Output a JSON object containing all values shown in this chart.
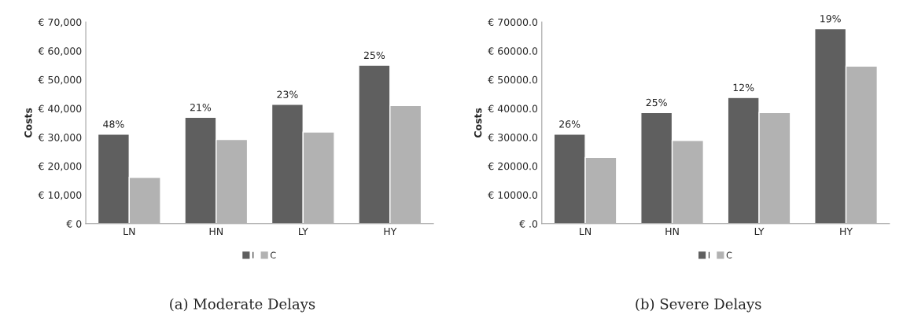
{
  "chart_data": [
    {
      "type": "bar",
      "title": "(a) Moderate Delays",
      "ylabel": "Costs",
      "categories": [
        "LN",
        "HN",
        "LY",
        "HY"
      ],
      "series": [
        {
          "name": "I",
          "color": "#5f5f5f",
          "values": [
            31100,
            36900,
            41400,
            55000
          ]
        },
        {
          "name": "C",
          "color": "#b2b2b2",
          "values": [
            16100,
            29200,
            31800,
            41000
          ]
        }
      ],
      "ylim": [
        0,
        70000
      ],
      "yticks": [
        {
          "value": 0,
          "label": "€ 0"
        },
        {
          "value": 10000,
          "label": "€ 10,000"
        },
        {
          "value": 20000,
          "label": "€ 20,000"
        },
        {
          "value": 30000,
          "label": "€ 30,000"
        },
        {
          "value": 40000,
          "label": "€ 40,000"
        },
        {
          "value": 50000,
          "label": "€ 50,000"
        },
        {
          "value": 60000,
          "label": "€ 60,000"
        },
        {
          "value": 70000,
          "label": "€ 70,000"
        }
      ],
      "annotations": [
        {
          "text": "48%",
          "x": "LN",
          "y": 31100
        },
        {
          "text": "21%",
          "x": "HN",
          "y": 36900
        },
        {
          "text": "23%",
          "x": "LY",
          "y": 41400
        },
        {
          "text": "25%",
          "x": "HY",
          "y": 55000
        }
      ],
      "grid": false,
      "legend": "bottom"
    },
    {
      "type": "bar",
      "title": "(b) Severe Delays",
      "ylabel": "Costs",
      "categories": [
        "LN",
        "HN",
        "LY",
        "HY"
      ],
      "series": [
        {
          "name": "I",
          "color": "#5f5f5f",
          "values": [
            31100,
            38600,
            43800,
            67700
          ]
        },
        {
          "name": "C",
          "color": "#b2b2b2",
          "values": [
            23000,
            28900,
            38600,
            54700
          ]
        }
      ],
      "ylim": [
        0,
        70000
      ],
      "yticks": [
        {
          "value": 0,
          "label": "€ .0"
        },
        {
          "value": 10000,
          "label": "€ 10000.0"
        },
        {
          "value": 20000,
          "label": "€ 20000.0"
        },
        {
          "value": 30000,
          "label": "€ 30000.0"
        },
        {
          "value": 40000,
          "label": "€ 40000.0"
        },
        {
          "value": 50000,
          "label": "€ 50000.0"
        },
        {
          "value": 60000,
          "label": "€ 60000.0"
        },
        {
          "value": 70000,
          "label": "€ 70000.0"
        }
      ],
      "annotations": [
        {
          "text": "26%",
          "x": "LN",
          "y": 31100
        },
        {
          "text": "25%",
          "x": "HN",
          "y": 38600
        },
        {
          "text": "12%",
          "x": "LY",
          "y": 43800
        },
        {
          "text": "19%",
          "x": "HY",
          "y": 67700
        }
      ],
      "grid": false,
      "legend": "bottom"
    }
  ]
}
